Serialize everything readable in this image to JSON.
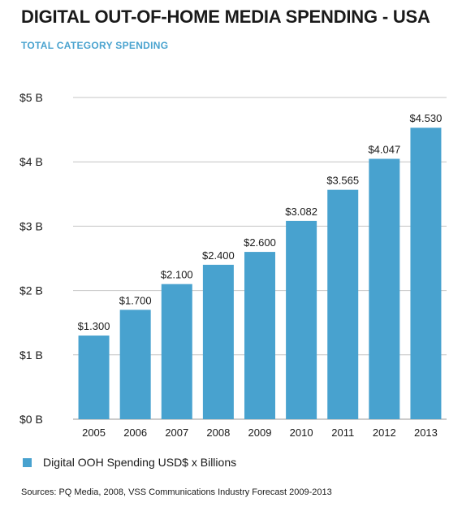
{
  "chart_data": {
    "type": "bar",
    "title": "DIGITAL OUT-OF-HOME MEDIA SPENDING - USA",
    "subtitle": "TOTAL CATEGORY SPENDING",
    "categories": [
      "2005",
      "2006",
      "2007",
      "2008",
      "2009",
      "2010",
      "2011",
      "2012",
      "2013"
    ],
    "series": [
      {
        "name": "Digital OOH Spending USD$  x Billions",
        "values": [
          1.3,
          1.7,
          2.1,
          2.4,
          2.6,
          3.082,
          3.565,
          4.047,
          4.53
        ],
        "labels": [
          "$1.300",
          "$1.700",
          "$2.100",
          "$2.400",
          "$2.600",
          "$3.082",
          "$3.565",
          "$4.047",
          "$4.530"
        ]
      }
    ],
    "ylim": [
      0,
      5
    ],
    "yticks": [
      0,
      1,
      2,
      3,
      4,
      5
    ],
    "ytick_labels": [
      "$0 B",
      "$1 B",
      "$2 B",
      "$3 B",
      "$4 B",
      "$5 B"
    ],
    "grid": true,
    "legend_position": "bottom-left",
    "bar_color": "#48a2cf",
    "source": "Sources: PQ Media, 2008, VSS Communications Industry Forecast 2009-2013"
  }
}
